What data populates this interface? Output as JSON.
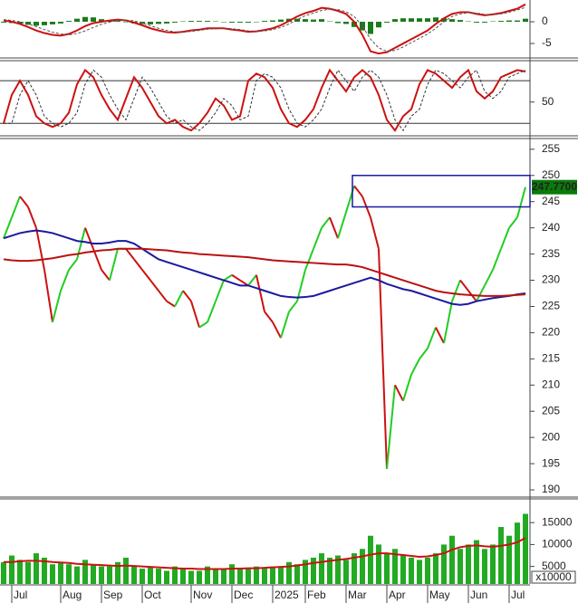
{
  "chart_data": [
    {
      "type": "line",
      "ylim": [
        -7.9,
        5
      ],
      "yticks": [
        0,
        -5
      ],
      "series": [
        {
          "style": "bar",
          "color": "#1a7a1a",
          "values": [
            -0.2,
            -0.3,
            -0.5,
            -0.7,
            -0.9,
            -0.8,
            -0.6,
            -0.4,
            0.2,
            0.7,
            1.1,
            1,
            0.6,
            0.4,
            0.2,
            -0.1,
            -0.4,
            -0.5,
            -0.6,
            -0.5,
            -0.4,
            -0.2,
            0.1,
            0.2,
            0.2,
            0.2,
            0.1,
            0,
            -0.2,
            -0.2,
            -0.2,
            0,
            0.2,
            0.3,
            0.5,
            0.7,
            0.7,
            0.6,
            0.5,
            0.6,
            0.1,
            -0.3,
            -0.5,
            -1.2,
            -2,
            -2.8,
            -1.3,
            -0.2,
            0.6,
            0.8,
            0.8,
            0.8,
            0.8,
            1,
            0.8,
            0.6,
            0.4,
            0.1,
            -0.2,
            -0.2,
            0.1,
            0.2,
            0.3,
            0.3,
            0.7
          ]
        },
        {
          "style": "line",
          "color": "#cc1111",
          "values": [
            0.3,
            0,
            -0.5,
            -1.2,
            -2,
            -2.6,
            -3,
            -3.2,
            -2.8,
            -2,
            -1,
            -0.3,
            0,
            0.3,
            0.5,
            0.3,
            -0.2,
            -0.8,
            -1.5,
            -2,
            -2.4,
            -2.5,
            -2.3,
            -2,
            -1.8,
            -1.5,
            -1.5,
            -1.5,
            -1.8,
            -2,
            -2.3,
            -2.2,
            -1.9,
            -1.5,
            -0.8,
            0.2,
            1.2,
            2,
            2.5,
            3.2,
            3,
            2.5,
            1.8,
            0,
            -3,
            -6.8,
            -7.3,
            -7,
            -6,
            -5,
            -4,
            -3,
            -2,
            -0.5,
            0.8,
            1.8,
            2.2,
            2.2,
            1.8,
            1.5,
            1.7,
            2,
            2.5,
            3,
            4
          ]
        },
        {
          "style": "dashed",
          "color": "#555555",
          "values": [
            0.5,
            0.3,
            0,
            -0.5,
            -1.1,
            -1.8,
            -2.4,
            -2.8,
            -3,
            -2.7,
            -2.1,
            -1.3,
            -0.6,
            -0.1,
            0.3,
            0.4,
            0.2,
            -0.3,
            -0.9,
            -1.5,
            -2,
            -2.3,
            -2.4,
            -2.2,
            -2,
            -1.7,
            -1.6,
            -1.5,
            -1.6,
            -1.8,
            -2.1,
            -2.2,
            -2.1,
            -1.8,
            -1.3,
            -0.5,
            0.5,
            1.4,
            2,
            2.6,
            2.9,
            2.8,
            2.3,
            1.2,
            -1,
            -4,
            -6,
            -6.8,
            -6.6,
            -5.8,
            -4.8,
            -3.8,
            -2.8,
            -1.5,
            0,
            1.2,
            1.8,
            2.1,
            2,
            1.7,
            1.6,
            1.8,
            2.2,
            2.7,
            3.3
          ]
        }
      ]
    },
    {
      "type": "line",
      "ylim": [
        5,
        107
      ],
      "yticks": [
        50
      ],
      "levels": [
        20,
        80
      ],
      "series": [
        {
          "style": "line",
          "color": "#cc1111",
          "values": [
            20,
            60,
            80,
            60,
            30,
            20,
            15,
            20,
            35,
            75,
            95,
            85,
            60,
            40,
            25,
            55,
            85,
            70,
            50,
            30,
            20,
            25,
            15,
            10,
            20,
            35,
            55,
            45,
            25,
            30,
            80,
            90,
            85,
            70,
            40,
            20,
            15,
            25,
            40,
            70,
            95,
            80,
            65,
            85,
            95,
            85,
            60,
            25,
            10,
            30,
            40,
            75,
            95,
            90,
            80,
            70,
            85,
            95,
            65,
            55,
            65,
            85,
            90,
            95,
            93
          ]
        },
        {
          "style": "dashed",
          "color": "#333333",
          "values": [
            20,
            20,
            60,
            80,
            60,
            30,
            20,
            15,
            20,
            35,
            75,
            95,
            85,
            60,
            40,
            25,
            55,
            85,
            70,
            50,
            30,
            20,
            25,
            15,
            10,
            20,
            35,
            55,
            45,
            25,
            30,
            80,
            90,
            85,
            70,
            40,
            20,
            15,
            25,
            40,
            70,
            95,
            80,
            65,
            85,
            95,
            85,
            60,
            25,
            10,
            30,
            40,
            75,
            95,
            90,
            80,
            70,
            85,
            95,
            65,
            55,
            65,
            85,
            90,
            95
          ]
        }
      ]
    },
    {
      "type": "line",
      "ylim": [
        188.8,
        256.7
      ],
      "yticks": [
        190,
        195,
        200,
        205,
        210,
        215,
        220,
        225,
        230,
        235,
        240,
        245,
        250,
        255
      ],
      "box": {
        "low": 244,
        "high": 250
      },
      "last_price_label": {
        "value": 247.77,
        "label": "247.7700"
      },
      "series": [
        {
          "style": "candle",
          "color": "#22cc22",
          "down_color": "#cc1111",
          "values": [
            238,
            242,
            246,
            244,
            240,
            232,
            222,
            228,
            232,
            234,
            240,
            236,
            232,
            230,
            236,
            236,
            234,
            232,
            230,
            228,
            226,
            225,
            228,
            226,
            221,
            222,
            226,
            230,
            231,
            230,
            229,
            231,
            224,
            222,
            219,
            224,
            226,
            232,
            236,
            240,
            242,
            238,
            243,
            248,
            246,
            242,
            236,
            194,
            210,
            207,
            212,
            215,
            217,
            221,
            218,
            226,
            230,
            228,
            226,
            229,
            232,
            236,
            240,
            242,
            247.77
          ]
        },
        {
          "style": "line",
          "color": "#1a1aa0",
          "values": [
            238,
            238.5,
            239,
            239.3,
            239.5,
            239.3,
            239,
            238.5,
            238,
            237.5,
            237.3,
            237,
            237,
            237.2,
            237.5,
            237.5,
            237,
            236,
            235,
            234,
            233.5,
            233,
            232.5,
            232,
            231.5,
            231,
            230.5,
            230,
            229.5,
            229,
            229,
            228.5,
            228,
            227.5,
            227,
            226.8,
            226.7,
            226.8,
            227,
            227.5,
            228,
            228.5,
            229,
            229.5,
            230,
            230.5,
            230,
            229.3,
            228.8,
            228.3,
            228,
            227.5,
            227,
            226.5,
            226,
            225.5,
            225.3,
            225.5,
            226,
            226.3,
            226.6,
            226.8,
            227,
            227.3,
            227.5
          ]
        },
        {
          "style": "line",
          "color": "#bb1111",
          "values": [
            234,
            233.8,
            233.7,
            233.7,
            233.8,
            234,
            234.2,
            234.5,
            234.8,
            235,
            235.3,
            235.5,
            235.7,
            235.8,
            236,
            236,
            236,
            236,
            235.9,
            235.8,
            235.7,
            235.5,
            235.3,
            235.2,
            235,
            234.9,
            234.8,
            234.7,
            234.6,
            234.5,
            234.4,
            234.2,
            234,
            233.8,
            233.7,
            233.6,
            233.5,
            233.4,
            233.3,
            233.2,
            233.1,
            233,
            233,
            232.8,
            232.5,
            232,
            231.5,
            231,
            230.5,
            230,
            229.5,
            229,
            228.5,
            228,
            227.7,
            227.5,
            227.3,
            227.2,
            227.1,
            227,
            227,
            227,
            227.1,
            227.2,
            227.3
          ]
        }
      ]
    },
    {
      "type": "bar",
      "ylim": [
        1000,
        20000
      ],
      "yticks": [
        5000,
        10000,
        15000
      ],
      "unit_label": "x10000",
      "categories": [
        null,
        "Jul",
        null,
        null,
        null,
        null,
        null,
        "Aug",
        null,
        null,
        null,
        null,
        "Sep",
        null,
        null,
        null,
        null,
        "Oct",
        null,
        null,
        null,
        null,
        null,
        "Nov",
        null,
        null,
        null,
        null,
        "Dec",
        null,
        null,
        null,
        null,
        "2025",
        null,
        null,
        null,
        "Feb",
        null,
        null,
        null,
        null,
        "Mar",
        null,
        null,
        null,
        null,
        "Apr",
        null,
        null,
        null,
        null,
        "May",
        null,
        null,
        null,
        null,
        "Jun",
        null,
        null,
        null,
        null,
        "Jul",
        null,
        null
      ],
      "series": [
        {
          "style": "bar",
          "color": "#22aa22",
          "values": [
            6000,
            7500,
            6500,
            6000,
            8000,
            7000,
            5500,
            6000,
            5500,
            5000,
            6500,
            5500,
            5000,
            5000,
            6000,
            7000,
            5000,
            4500,
            5000,
            4500,
            4000,
            5000,
            4500,
            4000,
            4000,
            5000,
            4500,
            4500,
            5500,
            4500,
            4500,
            5000,
            4500,
            5000,
            5000,
            6000,
            5500,
            6500,
            7000,
            8000,
            7000,
            7500,
            6500,
            8000,
            9000,
            12000,
            10000,
            8000,
            9000,
            7500,
            7000,
            6500,
            7000,
            8000,
            10000,
            12000,
            9000,
            10000,
            11000,
            9000,
            10000,
            14000,
            12000,
            15000,
            17000
          ]
        },
        {
          "style": "line",
          "color": "#cc1111",
          "values": [
            6000,
            6000,
            6200,
            6300,
            6300,
            6200,
            6000,
            5900,
            5800,
            5600,
            5500,
            5400,
            5300,
            5200,
            5100,
            5200,
            5100,
            5000,
            4900,
            4800,
            4700,
            4600,
            4500,
            4500,
            4400,
            4400,
            4400,
            4400,
            4500,
            4500,
            4600,
            4600,
            4700,
            4800,
            4900,
            5000,
            5200,
            5500,
            5800,
            6000,
            6300,
            6500,
            6700,
            7000,
            7300,
            7700,
            8000,
            8000,
            7800,
            7600,
            7400,
            7200,
            7300,
            7600,
            8000,
            8800,
            9400,
            9700,
            9800,
            9600,
            9500,
            9700,
            10000,
            10500,
            11500
          ]
        }
      ]
    }
  ]
}
